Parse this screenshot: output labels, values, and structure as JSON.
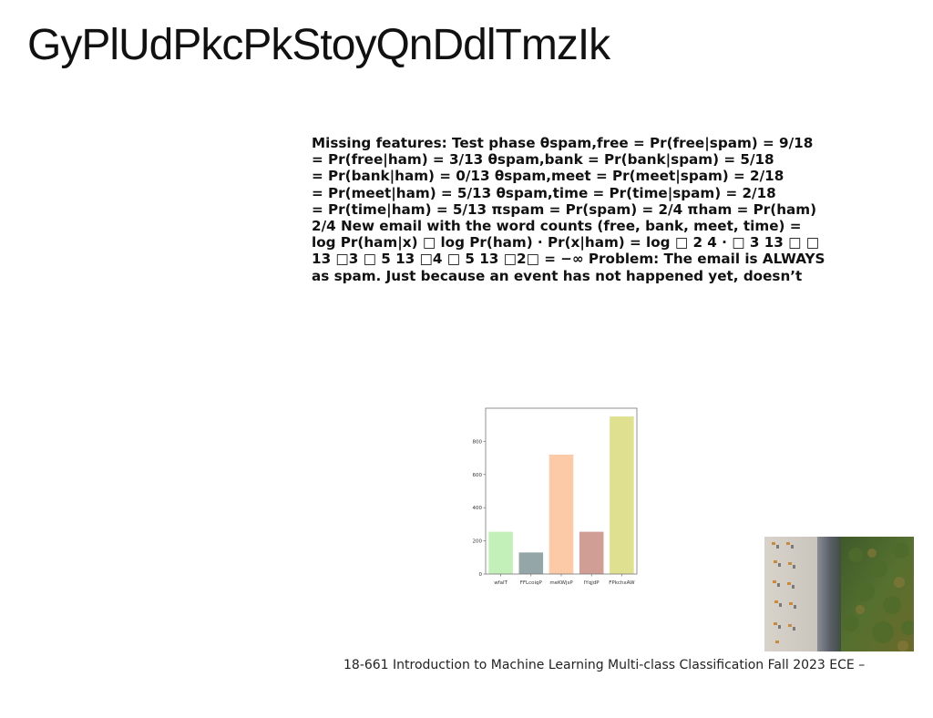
{
  "slide": {
    "title": "GyPlUdPkcPkStoyQnDdlTmzIk",
    "body_lines": [
      "Missing features: Test phase θspam,free = Pr(free|spam) = 9/18",
      "= Pr(free|ham) = 3/13 θspam,bank = Pr(bank|spam) = 5/18",
      "= Pr(bank|ham) = 0/13 θspam,meet = Pr(meet|spam) = 2/18",
      "= Pr(meet|ham) = 5/13 θspam,time = Pr(time|spam) = 2/18",
      "= Pr(time|ham) = 5/13 πspam = Pr(spam) = 2/4 πham = Pr(ham)",
      "2/4 New email with the word counts (free, bank, meet, time) =",
      "log Pr(ham|x) □ log Pr(ham) · Pr(x|ham) = log □ 2 4 · □ 3 13 □ □",
      "13 □3 □ 5 13 □4 □ 5 13 □2□ = −∞ Problem: The email is ALWAYS",
      "as spam. Just because an event has not happened yet, doesn’t"
    ],
    "footer": "18-661 Introduction to Machine Learning Multi-class Classification Fall 2023 ECE –"
  },
  "chart_data": {
    "type": "bar",
    "categories": [
      "wfaIT",
      "FFLcoiqP",
      "meKWjsP",
      "IYqjdP",
      "FPkchxAW"
    ],
    "values": [
      255,
      130,
      720,
      255,
      950
    ],
    "colors": [
      "#c2f0b8",
      "#95a6a9",
      "#fccaa6",
      "#d19e96",
      "#dfe090"
    ],
    "yticks": [
      "0",
      "200",
      "400",
      "600",
      "800"
    ],
    "ylim": [
      0,
      1000
    ],
    "title": "",
    "xlabel": "",
    "ylabel": "",
    "grid": false
  },
  "photo": {
    "icon": "aerial-beach-photo"
  }
}
